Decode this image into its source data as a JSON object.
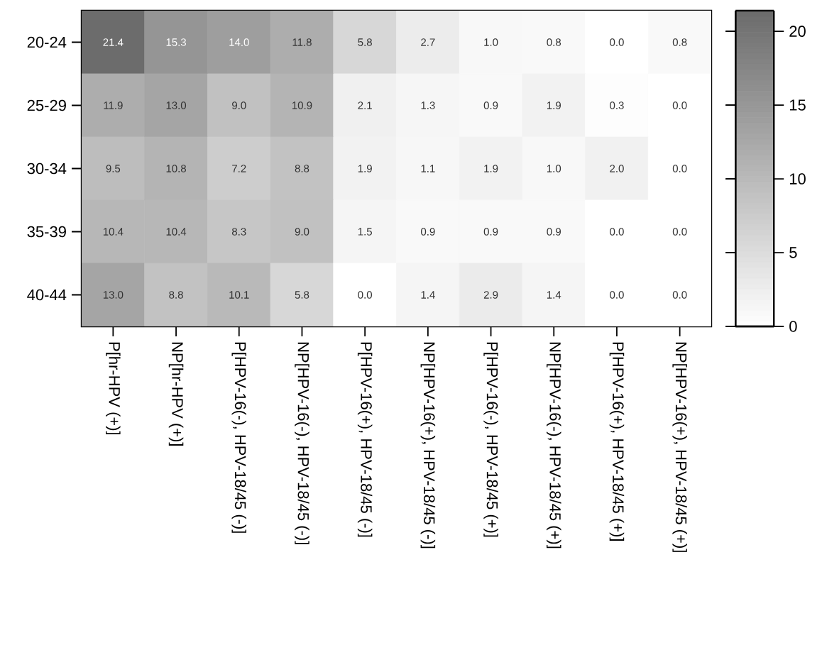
{
  "chart_data": {
    "type": "heatmap",
    "categories": [
      "P[hr-HPV (+)]",
      "NP[hr-HPV (+)]",
      "P[HPV-16(-), HPV-18/45 (-)]",
      "NP[HPV-16(-), HPV-18/45 (-)]",
      "P[HPV-16(+), HPV-18/45 (-)]",
      "NP[HPV-16(+), HPV-18/45 (-)]",
      "P[HPV-16(-), HPV-18/45 (+)]",
      "NP[HPV-16(-), HPV-18/45 (+)]",
      "P[HPV-16(+), HPV-18/45 (+)]",
      "NP[HPV-16(+), HPV-18/45 (+)]"
    ],
    "y_categories": [
      "20-24",
      "25-29",
      "30-34",
      "35-39",
      "40-44"
    ],
    "cells": [
      [
        21.4,
        15.3,
        14.0,
        11.8,
        5.8,
        2.7,
        1.0,
        0.8,
        0.0,
        0.8
      ],
      [
        11.9,
        13.0,
        9.0,
        10.9,
        2.1,
        1.3,
        0.9,
        1.9,
        0.3,
        0.0
      ],
      [
        9.5,
        10.8,
        7.2,
        8.8,
        1.9,
        1.1,
        1.9,
        1.0,
        2.0,
        0.0
      ],
      [
        10.4,
        10.4,
        8.3,
        9.0,
        1.5,
        0.9,
        0.9,
        0.9,
        0.0,
        0.0
      ],
      [
        13.0,
        8.8,
        10.1,
        5.8,
        0.0,
        1.4,
        2.9,
        1.4,
        0.0,
        0.0
      ]
    ],
    "cell_labels": [
      [
        "21.4",
        "15.3",
        "14.0",
        "11.8",
        "5.8",
        "2.7",
        "1.0",
        "0.8",
        "0.0",
        "0.8"
      ],
      [
        "11.9",
        "13.0",
        "9.0",
        "10.9",
        "2.1",
        "1.3",
        "0.9",
        "1.9",
        "0.3",
        "0.0"
      ],
      [
        "9.5",
        "10.8",
        "7.2",
        "8.8",
        "1.9",
        "1.1",
        "1.9",
        "1.0",
        "2.0",
        "0.0"
      ],
      [
        "10.4",
        "10.4",
        "8.3",
        "9.0",
        "1.5",
        "0.9",
        "0.9",
        "0.9",
        "0.0",
        "0.0"
      ],
      [
        "13.0",
        "8.8",
        "10.1",
        "5.8",
        "0.0",
        "1.4",
        "2.9",
        "1.4",
        "0.0",
        "0.0"
      ]
    ],
    "clim": [
      0,
      21.4
    ],
    "cticks": [
      0,
      5,
      10,
      15,
      20
    ]
  }
}
